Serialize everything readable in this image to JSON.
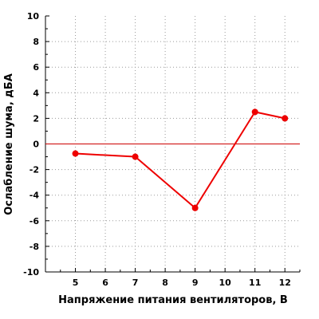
{
  "chart_data": {
    "type": "line",
    "title": "",
    "xlabel": "Напряжение питания вентиляторов, В",
    "ylabel": "Ослабление шума, дБА",
    "xlim": [
      4,
      12.5
    ],
    "ylim": [
      -10,
      10
    ],
    "x_ticks": [
      5,
      6,
      7,
      8,
      9,
      10,
      11,
      12
    ],
    "y_ticks": [
      10,
      8,
      6,
      4,
      2,
      0,
      -2,
      -4,
      -6,
      -8,
      -10
    ],
    "x_tick_labels": [
      "5",
      "6",
      "7",
      "8",
      "9",
      "10",
      "11",
      "12"
    ],
    "y_tick_labels": [
      "10",
      "8",
      "6",
      "4",
      "2",
      "0",
      "-2",
      "-4",
      "-6",
      "-8",
      "-10"
    ],
    "grid": true,
    "grid_style": "dotted",
    "reference_line": {
      "y": 0,
      "color": "#cc0000"
    },
    "series": [
      {
        "x": [
          5,
          7,
          9,
          11,
          12
        ],
        "values": [
          -0.75,
          -1,
          -5,
          2.5,
          2
        ],
        "color": "#ee0000",
        "marker": "circle"
      }
    ]
  }
}
